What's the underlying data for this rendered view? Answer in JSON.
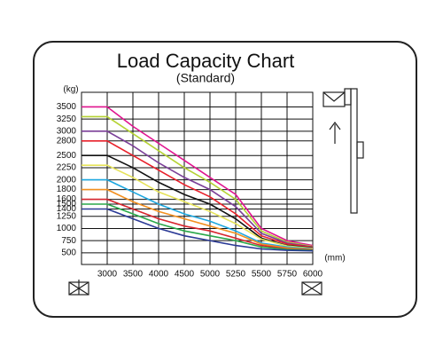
{
  "chart_data": {
    "type": "line",
    "title": "Load Capacity Chart",
    "subtitle": "(Standard)",
    "y_label": "(kg)",
    "x_label": "(mm)",
    "x": [
      2500,
      3000,
      3500,
      4000,
      4500,
      5000,
      5250,
      5500,
      5750,
      6000
    ],
    "xlim": [
      2500,
      6000
    ],
    "xticks": [
      3000,
      3500,
      4000,
      4500,
      5000,
      5250,
      5500,
      5750,
      6000
    ],
    "ylim": [
      260,
      3800
    ],
    "yticks": [
      500,
      750,
      1000,
      1250,
      1400,
      1500,
      1600,
      1800,
      2000,
      2250,
      2500,
      2800,
      3000,
      3250,
      3500
    ],
    "grid": true,
    "series": [
      {
        "color": "#e0158f",
        "values": [
          3500,
          3500,
          3100,
          2750,
          2400,
          2050,
          1700,
          1000,
          750,
          650
        ]
      },
      {
        "color": "#b5d334",
        "values": [
          3300,
          3300,
          2950,
          2600,
          2250,
          1950,
          1600,
          950,
          720,
          630
        ]
      },
      {
        "color": "#7b3f98",
        "values": [
          3000,
          3000,
          2700,
          2350,
          2050,
          1800,
          1450,
          900,
          700,
          620
        ]
      },
      {
        "color": "#e8202a",
        "values": [
          2800,
          2800,
          2500,
          2200,
          1900,
          1650,
          1300,
          850,
          680,
          610
        ]
      },
      {
        "color": "#111111",
        "values": [
          2500,
          2500,
          2250,
          1950,
          1700,
          1500,
          1200,
          800,
          650,
          600
        ]
      },
      {
        "color": "#e6e35a",
        "values": [
          2300,
          2300,
          2050,
          1750,
          1550,
          1350,
          1100,
          780,
          640,
          590
        ]
      },
      {
        "color": "#1fa8e0",
        "values": [
          2000,
          2000,
          1750,
          1500,
          1300,
          1150,
          950,
          700,
          620,
          580
        ]
      },
      {
        "color": "#f39020",
        "values": [
          1800,
          1800,
          1550,
          1350,
          1200,
          1050,
          900,
          680,
          600,
          570
        ]
      },
      {
        "color": "#d7262e",
        "values": [
          1600,
          1600,
          1400,
          1200,
          1050,
          950,
          800,
          650,
          580,
          560
        ]
      },
      {
        "color": "#2aa84a",
        "values": [
          1500,
          1500,
          1300,
          1100,
          950,
          850,
          750,
          620,
          570,
          550
        ]
      },
      {
        "color": "#2b3a96",
        "values": [
          1400,
          1400,
          1200,
          1000,
          850,
          750,
          650,
          580,
          550,
          540
        ]
      }
    ]
  }
}
